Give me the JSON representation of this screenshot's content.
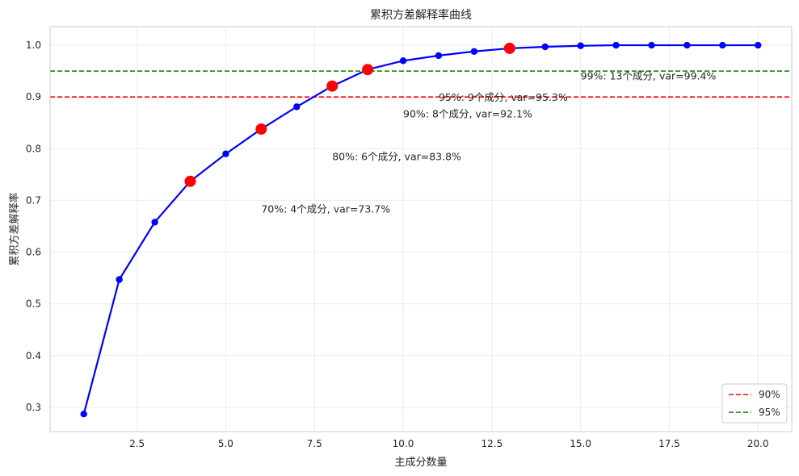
{
  "chart_data": {
    "type": "line",
    "title": "累积方差解释率曲线",
    "xlabel": "主成分数量",
    "ylabel": "累积方差解释率",
    "xlim": [
      0.05,
      20.95
    ],
    "ylim": [
      0.253,
      1.036
    ],
    "xticks": [
      2.5,
      5.0,
      7.5,
      10.0,
      12.5,
      15.0,
      17.5,
      20.0
    ],
    "xtick_labels": [
      "2.5",
      "5.0",
      "7.5",
      "10.0",
      "12.5",
      "15.0",
      "17.5",
      "20.0"
    ],
    "yticks": [
      0.3,
      0.4,
      0.5,
      0.6,
      0.7,
      0.8,
      0.9,
      1.0
    ],
    "ytick_labels": [
      "0.3",
      "0.4",
      "0.5",
      "0.6",
      "0.7",
      "0.8",
      "0.9",
      "1.0"
    ],
    "grid": true,
    "legend_position": "bottom-right",
    "series": [
      {
        "color": "#0000ff",
        "x": [
          1,
          2,
          3,
          4,
          5,
          6,
          7,
          8,
          9,
          10,
          11,
          12,
          13,
          14,
          15,
          16,
          17,
          18,
          19,
          20
        ],
        "y": [
          0.287,
          0.547,
          0.658,
          0.737,
          0.79,
          0.838,
          0.881,
          0.921,
          0.953,
          0.97,
          0.98,
          0.988,
          0.994,
          0.997,
          0.999,
          1.0,
          1.0,
          1.0,
          1.0,
          1.0
        ]
      }
    ],
    "highlight_points": [
      {
        "x": 4,
        "y": 0.737
      },
      {
        "x": 6,
        "y": 0.838
      },
      {
        "x": 8,
        "y": 0.921
      },
      {
        "x": 9,
        "y": 0.953
      },
      {
        "x": 13,
        "y": 0.994
      }
    ],
    "highlight_color": "#ff0000",
    "reference_lines": [
      {
        "y": 0.9,
        "name": "90%",
        "color": "#ff0000",
        "style": "dashed"
      },
      {
        "y": 0.95,
        "name": "95%",
        "color": "#008000",
        "style": "dashed"
      }
    ],
    "annotations": [
      {
        "text": "70%: 4个成分, var=73.7%",
        "x": 6.0,
        "y": 0.683
      },
      {
        "text": "80%: 6个成分, var=83.8%",
        "x": 8.0,
        "y": 0.784
      },
      {
        "text": "90%: 8个成分, var=92.1%",
        "x": 10.0,
        "y": 0.867
      },
      {
        "text": "95%: 9个成分, var=95.3%",
        "x": 11.0,
        "y": 0.899
      },
      {
        "text": "99%: 13个成分, var=99.4%",
        "x": 15.0,
        "y": 0.94
      }
    ]
  }
}
